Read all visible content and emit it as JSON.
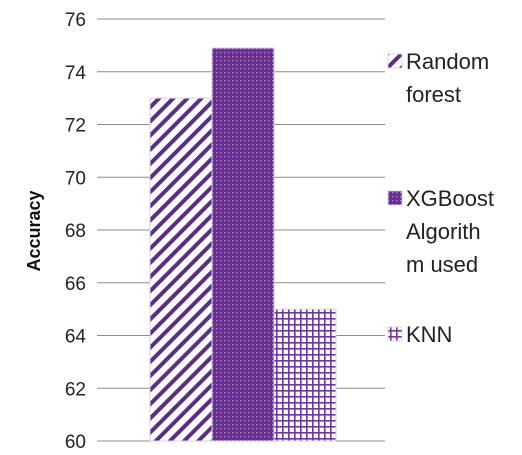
{
  "chart_data": {
    "type": "bar",
    "title": "",
    "xlabel": "",
    "ylabel": "Accuracy",
    "ylim": [
      60,
      76
    ],
    "yticks": [
      60,
      62,
      64,
      66,
      68,
      70,
      72,
      74,
      76
    ],
    "grid": true,
    "legend_position": "right",
    "series": [
      {
        "name": "Random forest",
        "values": [
          73
        ],
        "fill": "diagonal-hatch",
        "color": "#5b2d86"
      },
      {
        "name": "XGBoost Algorithm used",
        "values": [
          74.9
        ],
        "fill": "dense-dots",
        "color": "#6a2e92"
      },
      {
        "name": "KNN",
        "values": [
          65
        ],
        "fill": "grid-hatch",
        "color": "#6b3a98"
      }
    ],
    "legend_lines": [
      [
        "Random",
        "forest"
      ],
      [
        "XGBoost",
        "Algorith",
        "m used"
      ],
      [
        "KNN"
      ]
    ]
  }
}
